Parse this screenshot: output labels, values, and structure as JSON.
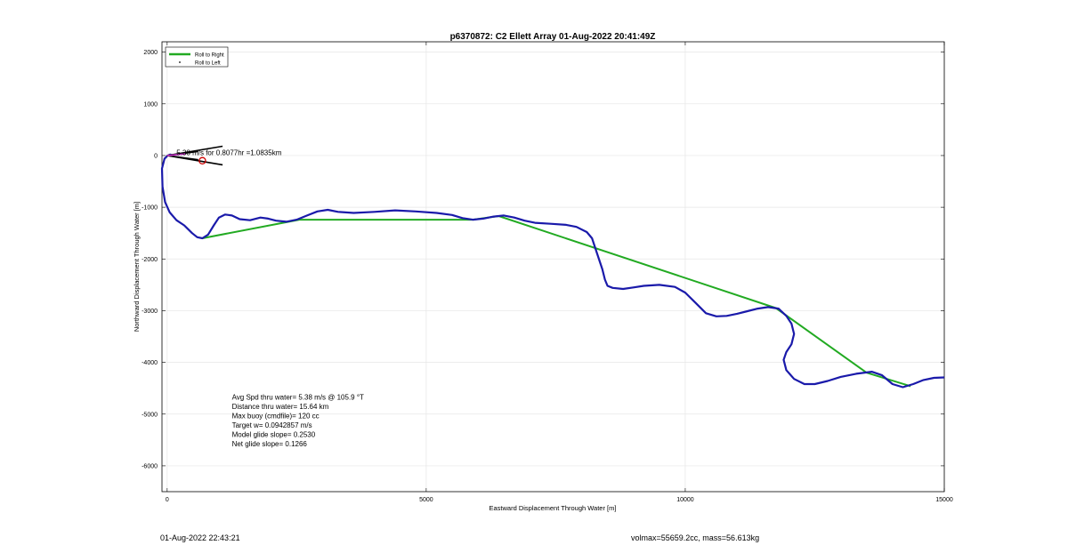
{
  "chart_data": {
    "type": "line",
    "title": "p6370872: C2 Ellett Array 01-Aug-2022 20:41:49Z",
    "xlabel": "Eastward Displacement Through Water [m]",
    "ylabel": "Northward Displacement Through Water [m]",
    "xlim": [
      -100,
      15000
    ],
    "ylim": [
      -6500,
      2200
    ],
    "xticks": [
      "0",
      "5000",
      "10000",
      "15000"
    ],
    "yticks": [
      "2000",
      "1000",
      "0",
      "-1000",
      "-2000",
      "-3000",
      "-4000",
      "-5000",
      "-6000"
    ],
    "grid": true,
    "legend_position": "top-left",
    "legend": [
      {
        "label": "Roll to Right",
        "color": "#22aa22"
      },
      {
        "label": "Roll to Left",
        "color": "#000000"
      }
    ],
    "series": [
      {
        "color": "#1a1aaa",
        "x": [
          120,
          60,
          10,
          -50,
          -100,
          -90,
          -40,
          50,
          180,
          330,
          480,
          580,
          680,
          790,
          900,
          1000,
          1120,
          1250,
          1400,
          1600,
          1800,
          1950,
          2100,
          2300,
          2500,
          2700,
          2900,
          3100,
          3300,
          3600,
          4000,
          4400,
          4800,
          5200,
          5500,
          5700,
          5900,
          6100,
          6300,
          6500,
          6700,
          6900,
          7100,
          7400,
          7700,
          7900,
          8100,
          8200,
          8300,
          8400,
          8450,
          8500,
          8600,
          8800,
          9000,
          9200,
          9500,
          9800,
          10000,
          10200,
          10400,
          10600,
          10800,
          11000,
          11200,
          11400,
          11600,
          11800,
          11950,
          12050,
          12100,
          12050,
          11950,
          11900,
          11950,
          12100,
          12300,
          12500,
          12750,
          13000,
          13300,
          13600,
          13800,
          14000,
          14200,
          14400,
          14600,
          14800,
          15000
        ],
        "y": [
          0,
          20,
          0,
          -60,
          -250,
          -600,
          -900,
          -1100,
          -1250,
          -1350,
          -1500,
          -1580,
          -1600,
          -1530,
          -1350,
          -1200,
          -1140,
          -1160,
          -1230,
          -1250,
          -1200,
          -1220,
          -1260,
          -1280,
          -1240,
          -1160,
          -1080,
          -1050,
          -1090,
          -1110,
          -1090,
          -1060,
          -1080,
          -1110,
          -1150,
          -1210,
          -1240,
          -1220,
          -1180,
          -1160,
          -1200,
          -1260,
          -1300,
          -1320,
          -1340,
          -1380,
          -1480,
          -1600,
          -1900,
          -2200,
          -2400,
          -2520,
          -2560,
          -2580,
          -2550,
          -2520,
          -2500,
          -2540,
          -2650,
          -2850,
          -3050,
          -3110,
          -3100,
          -3060,
          -3010,
          -2960,
          -2930,
          -2960,
          -3100,
          -3250,
          -3450,
          -3650,
          -3800,
          -3950,
          -4150,
          -4320,
          -4420,
          -4420,
          -4360,
          -4280,
          -4220,
          -4180,
          -4250,
          -4420,
          -4480,
          -4420,
          -4340,
          -4300,
          -4290
        ]
      },
      {
        "color": "#22aa22",
        "x": [
          680,
          2550,
          5900,
          6400,
          11750,
          13500,
          14350
        ],
        "y": [
          -1600,
          -1240,
          -1240,
          -1170,
          -2950,
          -4200,
          -4460
        ]
      }
    ],
    "annotations": [
      {
        "text": "5.38 m/s for 0.8077hr =1.0835km",
        "x": 180,
        "y": 10
      },
      {
        "text": "Avg Spd thru water=  5.38 m/s @ 105.9 °T",
        "x": 1250,
        "y": -4720
      },
      {
        "text": "Distance thru water= 15.64 km",
        "x": 1250,
        "y": -4900
      },
      {
        "text": "Max buoy (cmdfile)= 120 cc",
        "x": 1250,
        "y": -5080
      },
      {
        "text": "Target w= 0.0942857 m/s",
        "x": 1250,
        "y": -5260
      },
      {
        "text": "Model glide slope= 0.2530",
        "x": 1250,
        "y": -5440
      },
      {
        "text": "Net glide slope= 0.1266",
        "x": 1250,
        "y": -5620
      }
    ],
    "marker": {
      "x": 680,
      "y": -100,
      "color": "#cc0000"
    }
  },
  "footer": {
    "timestamp": "01-Aug-2022 22:43:21",
    "volmax": "volmax=55659.2cc, mass=56.613kg"
  }
}
